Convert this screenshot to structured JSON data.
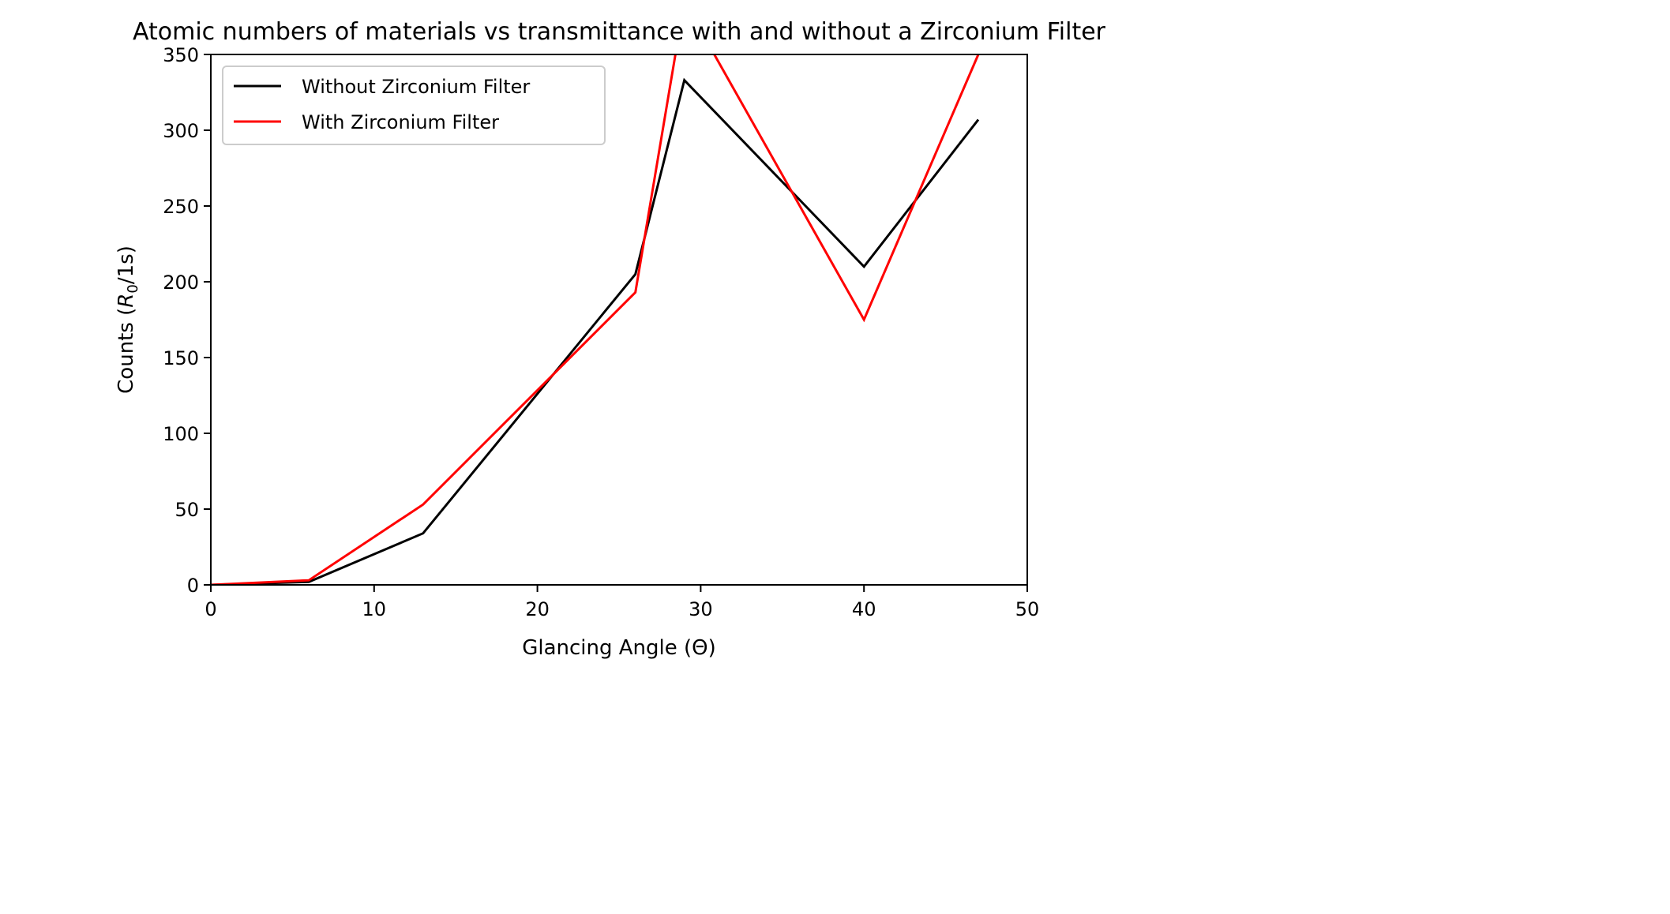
{
  "chart_data": {
    "type": "line",
    "title": "Atomic numbers of materials vs transmittance with and without a Zirconium Filter",
    "xlabel": "Glancing Angle (Θ)",
    "ylabel_prefix": "Counts (",
    "ylabel_var": "R",
    "ylabel_sub": "0",
    "ylabel_suffix": "/1s)",
    "xlim": [
      0,
      50
    ],
    "ylim": [
      0,
      350
    ],
    "xticks": [
      0,
      10,
      20,
      30,
      40,
      50
    ],
    "yticks": [
      0,
      50,
      100,
      150,
      200,
      250,
      300,
      350
    ],
    "grid": false,
    "legend_position": "upper-left",
    "series": [
      {
        "name": "Without Zirconium Filter",
        "color": "#000000",
        "x": [
          0,
          6,
          13,
          26,
          29,
          40,
          47
        ],
        "y": [
          0,
          2,
          34,
          205,
          333,
          210,
          307
        ]
      },
      {
        "name": "With Zirconium Filter",
        "color": "#ff0000",
        "x": [
          0,
          6,
          13,
          26,
          29,
          40,
          47
        ],
        "y": [
          0,
          3,
          53,
          193,
          385,
          175,
          350
        ]
      }
    ]
  }
}
